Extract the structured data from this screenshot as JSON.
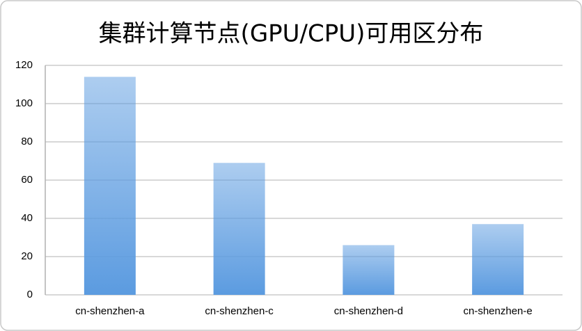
{
  "chart_data": {
    "type": "bar",
    "title": "集群计算节点(GPU/CPU)可用区分布",
    "categories": [
      "cn-shenzhen-a",
      "cn-shenzhen-c",
      "cn-shenzhen-d",
      "cn-shenzhen-e"
    ],
    "values": [
      114,
      69,
      26,
      37
    ],
    "color": "#5b9be0",
    "ylim": [
      0,
      120
    ],
    "yticks": [
      0,
      20,
      40,
      60,
      80,
      100,
      120
    ],
    "grid": true
  }
}
